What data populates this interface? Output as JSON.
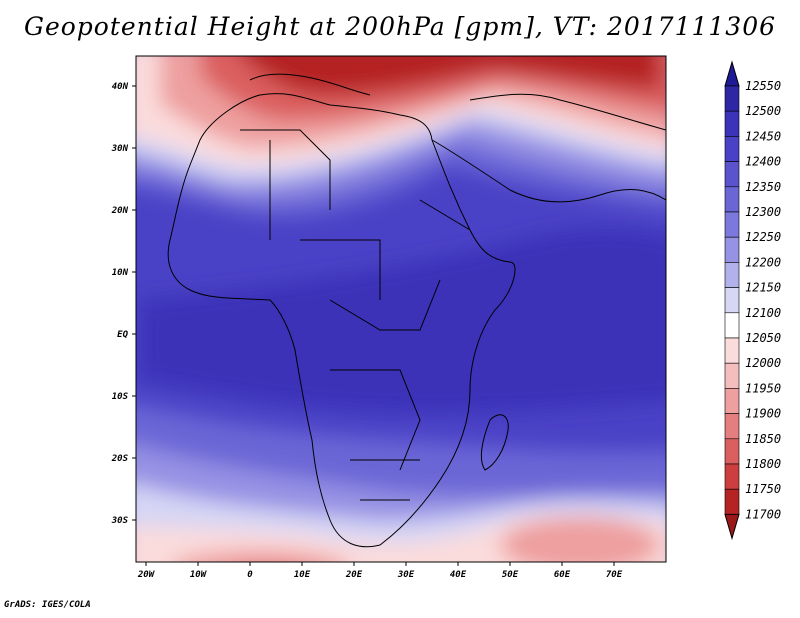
{
  "title": "Geopotential Height at 200hPa [gpm], VT: 2017111306",
  "credit": "GrADS: IGES/COLA",
  "lat_ticks": [
    "40N",
    "30N",
    "20N",
    "10N",
    "EQ",
    "10S",
    "20S",
    "30S"
  ],
  "lon_ticks": [
    "20W",
    "10W",
    "0",
    "10E",
    "20E",
    "30E",
    "40E",
    "50E",
    "60E",
    "70E"
  ],
  "colorbar": {
    "labels": [
      "12550",
      "12500",
      "12450",
      "12400",
      "12350",
      "12300",
      "12250",
      "12200",
      "12150",
      "12100",
      "12050",
      "12000",
      "11950",
      "11900",
      "11850",
      "11800",
      "11750",
      "11700"
    ],
    "colors": [
      "#1f1a96",
      "#2d27a6",
      "#3b33b8",
      "#4a42c6",
      "#5a53cd",
      "#6b66d6",
      "#7c78dd",
      "#9692e4",
      "#b3b1ec",
      "#d6d6f5",
      "#ffffff",
      "#fbdcdc",
      "#f5bebe",
      "#ee9f9f",
      "#e57e7e",
      "#db5f5f",
      "#cd3f3f",
      "#b52323",
      "#9a1818"
    ]
  }
}
